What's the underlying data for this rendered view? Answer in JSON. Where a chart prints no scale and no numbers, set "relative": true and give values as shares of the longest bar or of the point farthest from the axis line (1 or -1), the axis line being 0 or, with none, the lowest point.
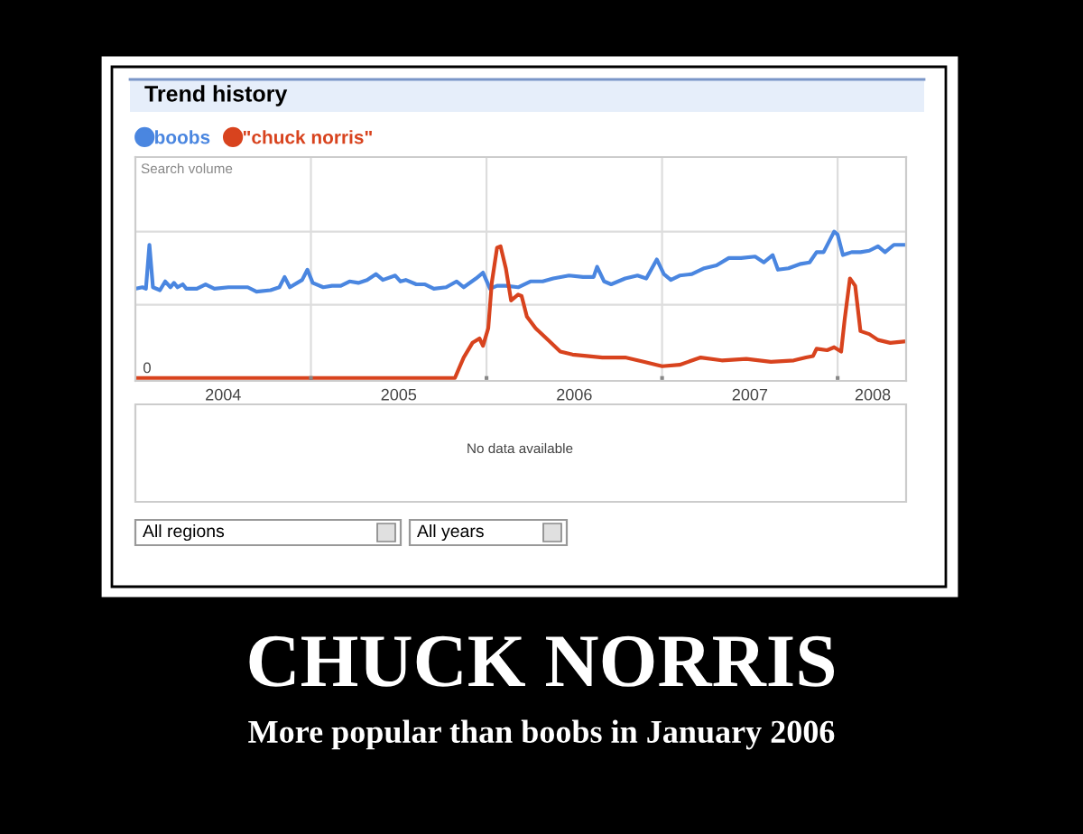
{
  "chart_data": {
    "type": "line",
    "title": "CHUCK NORRIS",
    "subtitle": "More popular than boobs in January 2006",
    "annotations": [
      "Trend history",
      "Search volume",
      {
        "text": "0",
        "x": 2004.0,
        "y": 0
      },
      "No data available",
      "All regions",
      "All years"
    ],
    "relative": true,
    "grid": true,
    "legend": "top left",
    "line_style": "solid",
    "xlim": [
      2004.0,
      2008.39
    ],
    "xticks": [
      {
        "value": 2004.5,
        "label": "2004"
      },
      {
        "value": 2005,
        "label": null
      },
      {
        "value": 2005.5,
        "label": "2005"
      },
      {
        "value": 2006,
        "label": null
      },
      {
        "value": 2006.5,
        "label": "2006"
      },
      {
        "value": 2007,
        "label": null
      },
      {
        "value": 2007.5,
        "label": "2007"
      },
      {
        "value": 2008,
        "label": null
      },
      {
        "value": 2008.2,
        "label": "2008"
      }
    ],
    "series": [
      {
        "name": "boobs",
        "color": "#4a86e0",
        "x": [
          2004.0,
          2004.04,
          2004.06,
          2004.08,
          2004.1,
          2004.14,
          2004.17,
          2004.2,
          2004.22,
          2004.24,
          2004.27,
          2004.29,
          2004.35,
          2004.4,
          2004.45,
          2004.53,
          2004.64,
          2004.69,
          2004.77,
          2004.82,
          2004.85,
          2004.88,
          2004.95,
          2004.98,
          2005.01,
          2005.07,
          2005.12,
          2005.17,
          2005.22,
          2005.27,
          2005.32,
          2005.37,
          2005.41,
          2005.48,
          2005.51,
          2005.54,
          2005.6,
          2005.65,
          2005.7,
          2005.77,
          2005.83,
          2005.87,
          2005.94,
          2005.98,
          2006.02,
          2006.06,
          2006.11,
          2006.18,
          2006.25,
          2006.32,
          2006.38,
          2006.47,
          2006.55,
          2006.61,
          2006.63,
          2006.67,
          2006.71,
          2006.79,
          2006.86,
          2006.91,
          2006.97,
          2007.01,
          2007.05,
          2007.1,
          2007.17,
          2007.24,
          2007.31,
          2007.38,
          2007.45,
          2007.53,
          2007.58,
          2007.63,
          2007.66,
          2007.72,
          2007.79,
          2007.84,
          2007.88,
          2007.92,
          2007.98,
          2008.0,
          2008.03,
          2008.08,
          2008.13,
          2008.18,
          2008.23,
          2008.27,
          2008.32,
          2008.35,
          2008.38
        ],
        "values": [
          0.61,
          0.62,
          0.61,
          0.91,
          0.62,
          0.6,
          0.66,
          0.62,
          0.65,
          0.62,
          0.64,
          0.61,
          0.61,
          0.64,
          0.61,
          0.62,
          0.62,
          0.59,
          0.6,
          0.62,
          0.69,
          0.62,
          0.67,
          0.74,
          0.65,
          0.62,
          0.63,
          0.63,
          0.66,
          0.65,
          0.67,
          0.71,
          0.67,
          0.7,
          0.66,
          0.67,
          0.64,
          0.64,
          0.61,
          0.62,
          0.66,
          0.62,
          0.68,
          0.72,
          0.61,
          0.63,
          0.63,
          0.62,
          0.66,
          0.66,
          0.68,
          0.7,
          0.69,
          0.69,
          0.76,
          0.66,
          0.64,
          0.68,
          0.7,
          0.68,
          0.81,
          0.71,
          0.67,
          0.7,
          0.71,
          0.75,
          0.77,
          0.82,
          0.82,
          0.83,
          0.79,
          0.84,
          0.74,
          0.75,
          0.78,
          0.79,
          0.86,
          0.86,
          1.0,
          0.98,
          0.84,
          0.86,
          0.86,
          0.87,
          0.9,
          0.86,
          0.91,
          0.91,
          0.91
        ]
      },
      {
        "name": "\"chuck norris\"",
        "color": "#d8431e",
        "x": [
          2004.0,
          2004.29,
          2004.64,
          2004.98,
          2005.32,
          2005.66,
          2005.82,
          2005.87,
          2005.92,
          2005.96,
          2005.98,
          2006.01,
          2006.03,
          2006.06,
          2006.08,
          2006.11,
          2006.14,
          2006.18,
          2006.2,
          2006.23,
          2006.28,
          2006.35,
          2006.42,
          2006.49,
          2006.57,
          2006.66,
          2006.79,
          2006.9,
          2007.0,
          2007.1,
          2007.22,
          2007.34,
          2007.48,
          2007.62,
          2007.75,
          2007.82,
          2007.86,
          2007.88,
          2007.94,
          2007.98,
          2008.02,
          2008.04,
          2008.07,
          2008.1,
          2008.13,
          2008.18,
          2008.23,
          2008.3,
          2008.38
        ],
        "values": [
          0,
          0,
          0,
          0,
          0,
          0,
          0,
          0.14,
          0.24,
          0.27,
          0.22,
          0.34,
          0.65,
          0.89,
          0.9,
          0.75,
          0.53,
          0.57,
          0.56,
          0.42,
          0.34,
          0.26,
          0.18,
          0.16,
          0.15,
          0.14,
          0.14,
          0.11,
          0.08,
          0.09,
          0.14,
          0.12,
          0.13,
          0.11,
          0.12,
          0.14,
          0.15,
          0.2,
          0.19,
          0.21,
          0.18,
          0.4,
          0.68,
          0.63,
          0.32,
          0.3,
          0.26,
          0.24,
          0.25
        ]
      }
    ]
  }
}
